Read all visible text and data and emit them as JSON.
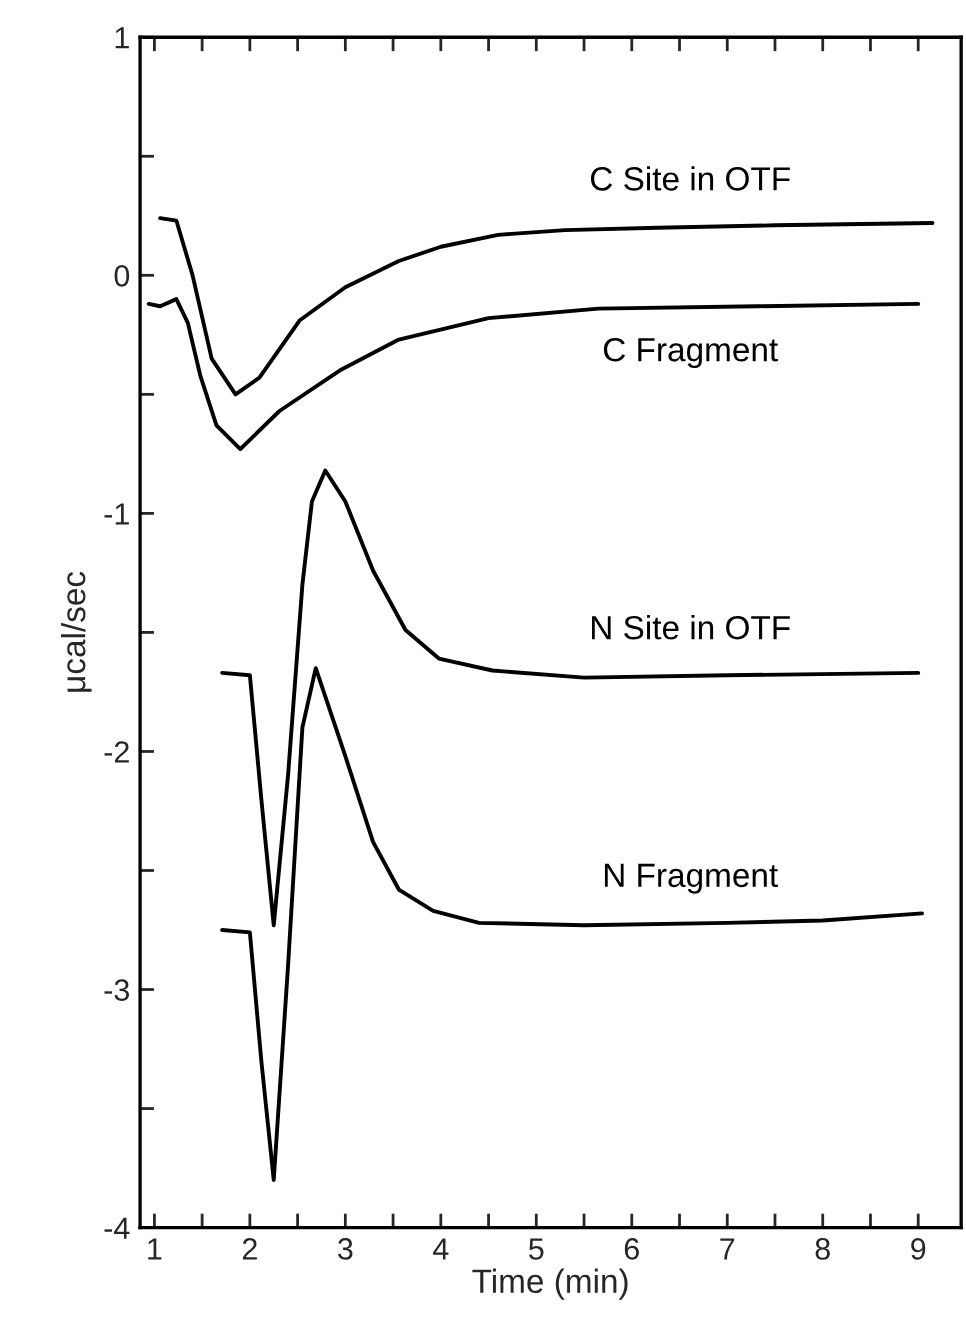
{
  "chart_data": {
    "type": "line",
    "xlabel": "Time (min)",
    "ylabel": "μcal/sec",
    "xlim": [
      0.85,
      9.45
    ],
    "ylim": [
      -4,
      1
    ],
    "xticks": [
      1,
      {
        "value": 1.5,
        "label": null
      },
      2,
      {
        "value": 2.5,
        "label": null
      },
      3,
      {
        "value": 3.5,
        "label": null
      },
      4,
      {
        "value": 4.5,
        "label": null
      },
      5,
      {
        "value": 5.5,
        "label": null
      },
      6,
      {
        "value": 6.5,
        "label": null
      },
      7,
      {
        "value": 7.5,
        "label": null
      },
      8,
      {
        "value": 8.5,
        "label": null
      },
      9
    ],
    "yticks": [
      -4,
      {
        "value": -3.5,
        "label": null
      },
      -3,
      {
        "value": -2.5,
        "label": null
      },
      -2,
      {
        "value": -1.5,
        "label": null
      },
      -1,
      {
        "value": -0.5,
        "label": null
      },
      0,
      {
        "value": 0.5,
        "label": null
      },
      1
    ],
    "grid": false,
    "legend": false,
    "marker": "none",
    "line_style": "solid",
    "series": [
      {
        "name": "C Site in OTF",
        "color": "#000000",
        "x": [
          1.06,
          1.23,
          1.4,
          1.6,
          1.85,
          2.1,
          2.52,
          3.0,
          3.56,
          4.0,
          4.6,
          5.3,
          6.27,
          7.5,
          9.15
        ],
        "values": [
          0.24,
          0.23,
          0.0,
          -0.35,
          -0.5,
          -0.43,
          -0.19,
          -0.05,
          0.06,
          0.12,
          0.17,
          0.19,
          0.2,
          0.21,
          0.22
        ]
      },
      {
        "name": "C Fragment",
        "color": "#000000",
        "x": [
          0.94,
          1.06,
          1.23,
          1.35,
          1.48,
          1.65,
          1.9,
          2.31,
          2.94,
          3.56,
          4.5,
          5.65,
          7.31,
          9.0
        ],
        "values": [
          -0.12,
          -0.13,
          -0.1,
          -0.2,
          -0.42,
          -0.63,
          -0.73,
          -0.57,
          -0.4,
          -0.27,
          -0.18,
          -0.14,
          -0.13,
          -0.12
        ]
      },
      {
        "name": "N Site in OTF",
        "color": "#000000",
        "x": [
          1.71,
          2.0,
          2.12,
          2.25,
          2.4,
          2.55,
          2.65,
          2.79,
          3.0,
          3.29,
          3.63,
          3.98,
          4.54,
          5.5,
          7.0,
          9.0
        ],
        "values": [
          -1.67,
          -1.68,
          -2.2,
          -2.73,
          -2.1,
          -1.3,
          -0.95,
          -0.82,
          -0.95,
          -1.24,
          -1.49,
          -1.61,
          -1.66,
          -1.69,
          -1.68,
          -1.67
        ]
      },
      {
        "name": "N Fragment",
        "color": "#000000",
        "x": [
          1.71,
          2.0,
          2.12,
          2.25,
          2.4,
          2.55,
          2.69,
          3.0,
          3.29,
          3.56,
          3.92,
          4.4,
          5.5,
          7.0,
          8.0,
          9.04
        ],
        "values": [
          -2.75,
          -2.76,
          -3.3,
          -3.8,
          -2.9,
          -1.9,
          -1.65,
          -2.02,
          -2.38,
          -2.58,
          -2.67,
          -2.72,
          -2.73,
          -2.72,
          -2.71,
          -2.68
        ]
      }
    ]
  }
}
